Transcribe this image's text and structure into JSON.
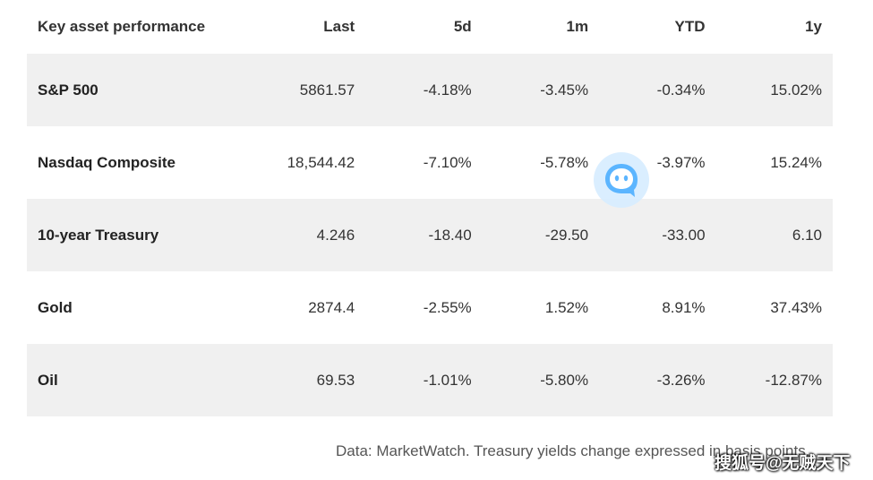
{
  "table": {
    "headers": [
      "Key asset performance",
      "Last",
      "5d",
      "1m",
      "YTD",
      "1y"
    ],
    "rows": [
      {
        "name": "S&P 500",
        "last": "5861.57",
        "d5": "-4.18%",
        "m1": "-3.45%",
        "ytd": "-0.34%",
        "y1": "15.02%"
      },
      {
        "name": "Nasdaq Composite",
        "last": "18,544.42",
        "d5": "-7.10%",
        "m1": "-5.78%",
        "ytd": "-3.97%",
        "y1": "15.24%"
      },
      {
        "name": "10-year Treasury",
        "last": "4.246",
        "d5": "-18.40",
        "m1": "-29.50",
        "ytd": "-33.00",
        "y1": "6.10"
      },
      {
        "name": "Gold",
        "last": "2874.4",
        "d5": "-2.55%",
        "m1": "1.52%",
        "ytd": "8.91%",
        "y1": "37.43%"
      },
      {
        "name": "Oil",
        "last": "69.53",
        "d5": "-1.01%",
        "m1": "-5.80%",
        "ytd": "-3.26%",
        "y1": "-12.87%"
      }
    ]
  },
  "footnote": "Data: MarketWatch. Treasury yields change expressed in basis points.",
  "watermark": "搜狐号@无贼天下",
  "chat_badge_icon": "chat-bubble-icon",
  "colors": {
    "stripe": "#f0f0f0",
    "badge_outer": "#d6ecff",
    "badge_inner": "#5bb5ff"
  }
}
